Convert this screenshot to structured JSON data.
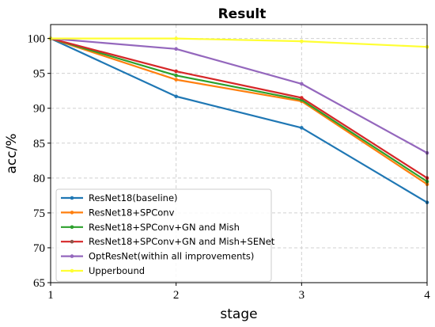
{
  "chart_data": {
    "type": "line",
    "title": "Result",
    "xlabel": "stage",
    "ylabel": "acc/%",
    "x": [
      1,
      2,
      3,
      4
    ],
    "xticks": [
      "1",
      "2",
      "3",
      "4"
    ],
    "yticks": [
      "65",
      "70",
      "75",
      "80",
      "85",
      "90",
      "95",
      "100"
    ],
    "xlim": [
      1,
      4
    ],
    "ylim": [
      65,
      102
    ],
    "grid": true,
    "legend_position": "bottom-left",
    "series": [
      {
        "name": "ResNet18(baseline)",
        "color": "#1f77b4",
        "values": [
          100,
          91.7,
          87.2,
          76.5
        ]
      },
      {
        "name": "ResNet18+SPConv",
        "color": "#ff7f0e",
        "values": [
          100,
          94.1,
          91.0,
          79.1
        ]
      },
      {
        "name": "ResNet18+SPConv+GN and Mish",
        "color": "#2ca02c",
        "values": [
          100,
          94.7,
          91.2,
          79.5
        ]
      },
      {
        "name": "ResNet18+SPConv+GN and Mish+SENet",
        "color": "#d62728",
        "values": [
          100,
          95.3,
          91.5,
          80.0
        ]
      },
      {
        "name": "OptResNet(within all improvements)",
        "color": "#9467bd",
        "values": [
          100,
          98.5,
          93.5,
          83.6
        ]
      },
      {
        "name": "Upperbound",
        "color": "#ffff33",
        "values": [
          100,
          100,
          99.6,
          98.8
        ]
      }
    ],
    "legend_marker_color": "#8c564b"
  }
}
